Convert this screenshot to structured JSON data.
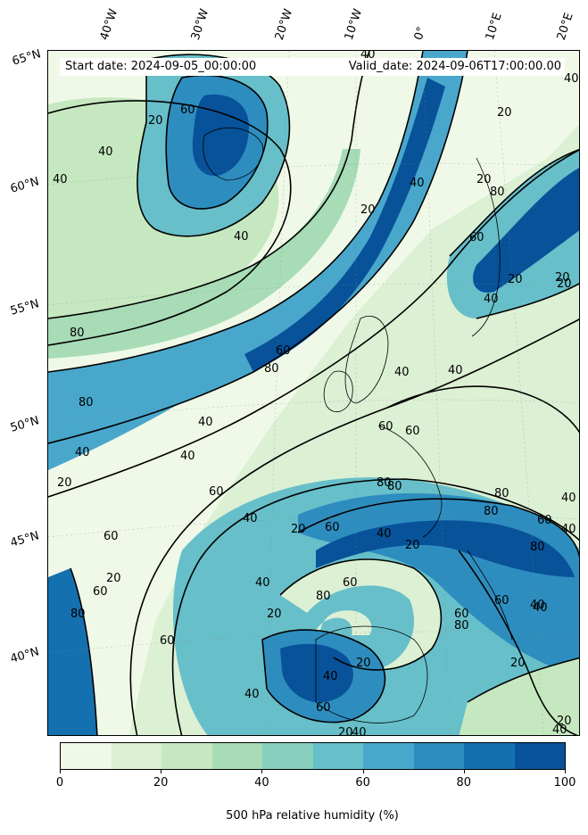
{
  "header": {
    "start_date": "Start date: 2024-09-05_00:00:00",
    "valid_date": "Valid_date: 2024-09-06T17:00:00.00"
  },
  "longitude_labels": [
    "40°W",
    "30°W",
    "20°W",
    "10°W",
    "0°",
    "10°E",
    "20°E"
  ],
  "latitude_labels": [
    "65°N",
    "60°N",
    "55°N",
    "50°N",
    "45°N",
    "40°N"
  ],
  "contour_labels": [
    "20",
    "60",
    "40",
    "40",
    "20",
    "40",
    "40",
    "20",
    "80",
    "20",
    "60",
    "80",
    "80",
    "40",
    "60",
    "80",
    "40",
    "80",
    "40",
    "60",
    "40",
    "20",
    "20",
    "40",
    "60",
    "60",
    "20",
    "80",
    "60",
    "80",
    "40",
    "60",
    "40",
    "80",
    "60",
    "20",
    "20",
    "40",
    "60",
    "20",
    "80",
    "60",
    "40",
    "60",
    "80",
    "80",
    "40",
    "20",
    "20",
    "60",
    "60",
    "40",
    "20",
    "80",
    "40",
    "20",
    "40",
    "20",
    "60",
    "40",
    "40",
    "20",
    "40",
    "40",
    "40",
    "40"
  ],
  "colorbar": {
    "label": "500 hPa relative humidity (%)",
    "ticks": [
      "0",
      "20",
      "40",
      "60",
      "80",
      "100"
    ],
    "colors": [
      "#f0f9e8",
      "#dcf0d4",
      "#c6e8c0",
      "#a7dcb6",
      "#88cfbe",
      "#67bfc9",
      "#49a7cc",
      "#2e8dbf",
      "#1570b0",
      "#08529a"
    ]
  }
}
